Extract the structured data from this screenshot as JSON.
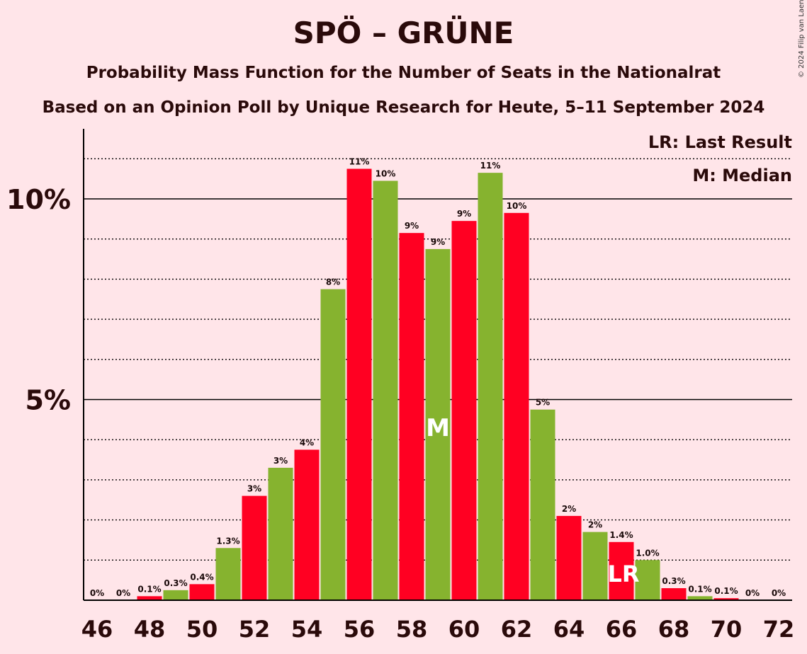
{
  "title": "SPÖ – GRÜNE",
  "subtitle": "Probability Mass Function for the Number of Seats in the Nationalrat",
  "source": "Based on an Opinion Poll by Unique Research for Heute, 5–11 September 2024",
  "copyright": "© 2024 Filip van Laenen",
  "legend": {
    "last_result": "LR: Last Result",
    "median": "M: Median"
  },
  "colors": {
    "red": "#FF0022",
    "green": "#86B32F",
    "background": "#FFE5E9"
  },
  "chart_data": {
    "type": "bar",
    "title": "SPÖ – GRÜNE",
    "xlabel": "",
    "ylabel": "",
    "x": [
      46,
      47,
      48,
      49,
      50,
      51,
      52,
      53,
      54,
      55,
      56,
      57,
      58,
      59,
      60,
      61,
      62,
      63,
      64,
      65,
      66,
      67,
      68,
      69,
      70,
      71,
      72
    ],
    "values": [
      0.0,
      0.0,
      0.1,
      0.25,
      0.4,
      1.3,
      2.6,
      3.3,
      3.75,
      7.75,
      10.75,
      10.45,
      9.15,
      8.75,
      9.45,
      10.65,
      9.65,
      4.75,
      2.1,
      1.7,
      1.45,
      1.0,
      0.3,
      0.1,
      0.05,
      0.0,
      0.0
    ],
    "labels": [
      "0%",
      "0%",
      "0.1%",
      "0.3%",
      "0.4%",
      "1.3%",
      "3%",
      "3%",
      "4%",
      "8%",
      "11%",
      "10%",
      "9%",
      "9%",
      "9%",
      "11%",
      "10%",
      "5%",
      "2%",
      "2%",
      "1.4%",
      "1.0%",
      "0.3%",
      "0.1%",
      "0.1%",
      "0%",
      "0%"
    ],
    "colors": [
      "green",
      "green",
      "red",
      "green",
      "red",
      "green",
      "red",
      "green",
      "red",
      "green",
      "red",
      "green",
      "red",
      "green",
      "red",
      "green",
      "red",
      "green",
      "red",
      "green",
      "red",
      "green",
      "red",
      "green",
      "red",
      "green",
      "red"
    ],
    "x_tick_labels": [
      "46",
      "48",
      "50",
      "52",
      "54",
      "56",
      "58",
      "60",
      "62",
      "64",
      "66",
      "68",
      "70",
      "72"
    ],
    "y_tick_labels": [
      {
        "value": 5,
        "label": "5%"
      },
      {
        "value": 10,
        "label": "10%"
      }
    ],
    "ylim": [
      0,
      11.7
    ],
    "gridlines_solid": [
      5,
      10
    ],
    "gridlines_dotted": [
      1,
      2,
      3,
      4,
      6,
      7,
      8,
      9,
      11
    ],
    "median": {
      "x": 59,
      "label": "M"
    },
    "last_result": {
      "x": 66,
      "label": "LR"
    },
    "legend_position": "top-right"
  }
}
